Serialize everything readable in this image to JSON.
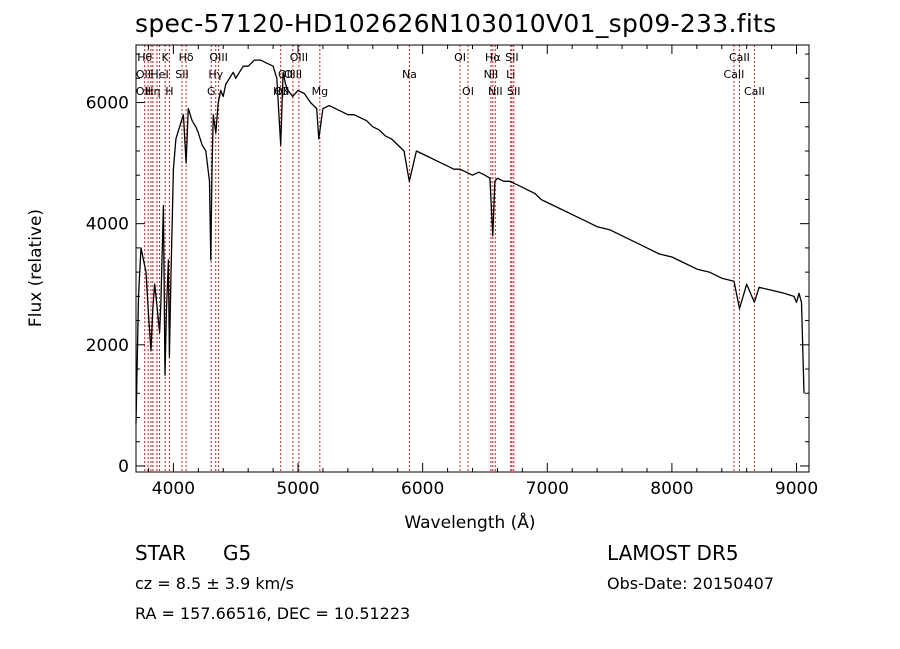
{
  "chart_data": {
    "type": "line",
    "title": "spec-57120-HD102626N103010V01_sp09-233.fits",
    "xlabel": "Wavelength (Å)",
    "ylabel": "Flux (relative)",
    "xlim": [
      3700,
      9100
    ],
    "ylim": [
      -100,
      6950
    ],
    "xticks": [
      4000,
      5000,
      6000,
      7000,
      8000,
      9000
    ],
    "yticks": [
      0,
      2000,
      4000,
      6000
    ],
    "grid": false,
    "series": [
      {
        "x": [
          3700,
          3720,
          3740,
          3760,
          3780,
          3800,
          3820,
          3835,
          3850,
          3870,
          3889,
          3900,
          3920,
          3933,
          3945,
          3960,
          3968,
          3980,
          4000,
          4020,
          4050,
          4080,
          4102,
          4120,
          4150,
          4180,
          4200,
          4230,
          4260,
          4290,
          4300,
          4310,
          4320,
          4340,
          4360,
          4380,
          4400,
          4420,
          4450,
          4480,
          4500,
          4530,
          4560,
          4600,
          4650,
          4700,
          4750,
          4800,
          4830,
          4861,
          4880,
          4900,
          4920,
          4957,
          5000,
          5050,
          5100,
          5150,
          5167,
          5200,
          5250,
          5300,
          5350,
          5400,
          5450,
          5500,
          5550,
          5600,
          5650,
          5700,
          5750,
          5800,
          5850,
          5893,
          5950,
          6000,
          6050,
          6100,
          6150,
          6200,
          6250,
          6300,
          6350,
          6400,
          6450,
          6500,
          6540,
          6563,
          6580,
          6600,
          6650,
          6700,
          6750,
          6800,
          6850,
          6900,
          6950,
          7000,
          7100,
          7200,
          7300,
          7400,
          7500,
          7600,
          7700,
          7800,
          7900,
          8000,
          8100,
          8200,
          8300,
          8400,
          8498,
          8542,
          8600,
          8662,
          8700,
          8800,
          8900,
          8980,
          9000,
          9020,
          9040,
          9060
        ],
        "y": [
          700,
          2800,
          3600,
          3400,
          3200,
          2500,
          1900,
          2600,
          3000,
          2600,
          2200,
          2700,
          4300,
          1500,
          2600,
          3400,
          1800,
          3100,
          4900,
          5400,
          5600,
          5800,
          5000,
          5900,
          5700,
          5600,
          5500,
          5300,
          5200,
          4700,
          3400,
          4900,
          5800,
          5500,
          6000,
          6200,
          6100,
          6300,
          6400,
          6500,
          6400,
          6500,
          6600,
          6600,
          6700,
          6700,
          6650,
          6600,
          6400,
          5300,
          6500,
          6300,
          6200,
          6100,
          6200,
          6150,
          6000,
          5900,
          5400,
          5900,
          5950,
          5900,
          5850,
          5800,
          5800,
          5750,
          5700,
          5600,
          5550,
          5450,
          5400,
          5300,
          5200,
          4700,
          5200,
          5150,
          5100,
          5050,
          5000,
          4950,
          4900,
          4900,
          4850,
          4800,
          4850,
          4800,
          4750,
          3800,
          4700,
          4750,
          4700,
          4700,
          4650,
          4600,
          4550,
          4500,
          4400,
          4350,
          4250,
          4150,
          4050,
          3950,
          3900,
          3800,
          3700,
          3600,
          3500,
          3450,
          3350,
          3250,
          3200,
          3100,
          3050,
          2600,
          3000,
          2700,
          2950,
          2900,
          2850,
          2800,
          2700,
          2850,
          2700,
          1200
        ]
      }
    ],
    "line_color": "#000000",
    "marker_color": "#c81e1e",
    "line_markers": [
      {
        "wl": 3770,
        "label": "Hθ",
        "row": 0
      },
      {
        "wl": 3797,
        "label": "",
        "row": 0
      },
      {
        "wl": 3820,
        "label": "",
        "row": 0
      },
      {
        "wl": 3835,
        "label": "Hη",
        "row": 2
      },
      {
        "wl": 3869,
        "label": "",
        "row": 0
      },
      {
        "wl": 3889,
        "label": "HeI",
        "row": 1
      },
      {
        "wl": 3934,
        "label": "K",
        "row": 0
      },
      {
        "wl": 3968,
        "label": "H",
        "row": 2
      },
      {
        "wl": 4069,
        "label": "SII",
        "row": 1
      },
      {
        "wl": 4102,
        "label": "Hδ",
        "row": 0
      },
      {
        "wl": 4304,
        "label": "G",
        "row": 2
      },
      {
        "wl": 4340,
        "label": "Hγ",
        "row": 1
      },
      {
        "wl": 4363,
        "label": "OIII",
        "row": 0
      },
      {
        "wl": 4861,
        "label": "Hβ",
        "row": 2
      },
      {
        "wl": 4959,
        "label": "OIII",
        "row": 1
      },
      {
        "wl": 5007,
        "label": "OIII",
        "row": 0
      },
      {
        "wl": 5175,
        "label": "Mg",
        "row": 2
      },
      {
        "wl": 5894,
        "label": "Na",
        "row": 1
      },
      {
        "wl": 6300,
        "label": "OI",
        "row": 0
      },
      {
        "wl": 6364,
        "label": "OI",
        "row": 2
      },
      {
        "wl": 6548,
        "label": "NII",
        "row": 1
      },
      {
        "wl": 6563,
        "label": "Hα",
        "row": 0
      },
      {
        "wl": 6583,
        "label": "NII",
        "row": 2
      },
      {
        "wl": 6707,
        "label": "Li",
        "row": 1
      },
      {
        "wl": 6716,
        "label": "SII",
        "row": 0
      },
      {
        "wl": 6731,
        "label": "SII",
        "row": 2
      },
      {
        "wl": 8498,
        "label": "CaII",
        "row": 1
      },
      {
        "wl": 8542,
        "label": "CaII",
        "row": 0
      },
      {
        "wl": 8662,
        "label": "CaII",
        "row": 2
      }
    ],
    "extra_labels": [
      {
        "wl": 3760,
        "label": "OII",
        "row": 1
      },
      {
        "wl": 3760,
        "label": "OII",
        "row": 2
      },
      {
        "wl": 4900,
        "label": "OII",
        "row": 1
      },
      {
        "wl": 4870,
        "label": "OII",
        "row": 2
      }
    ]
  },
  "info": {
    "class_label": "STAR",
    "subclass": "G5",
    "survey": "LAMOST  DR5",
    "cz_text": "cz = 8.5 ± 3.9 km/s",
    "obs_date": "Obs-Date: 20150407",
    "coords": "RA = 157.66516, DEC =  10.51223"
  }
}
